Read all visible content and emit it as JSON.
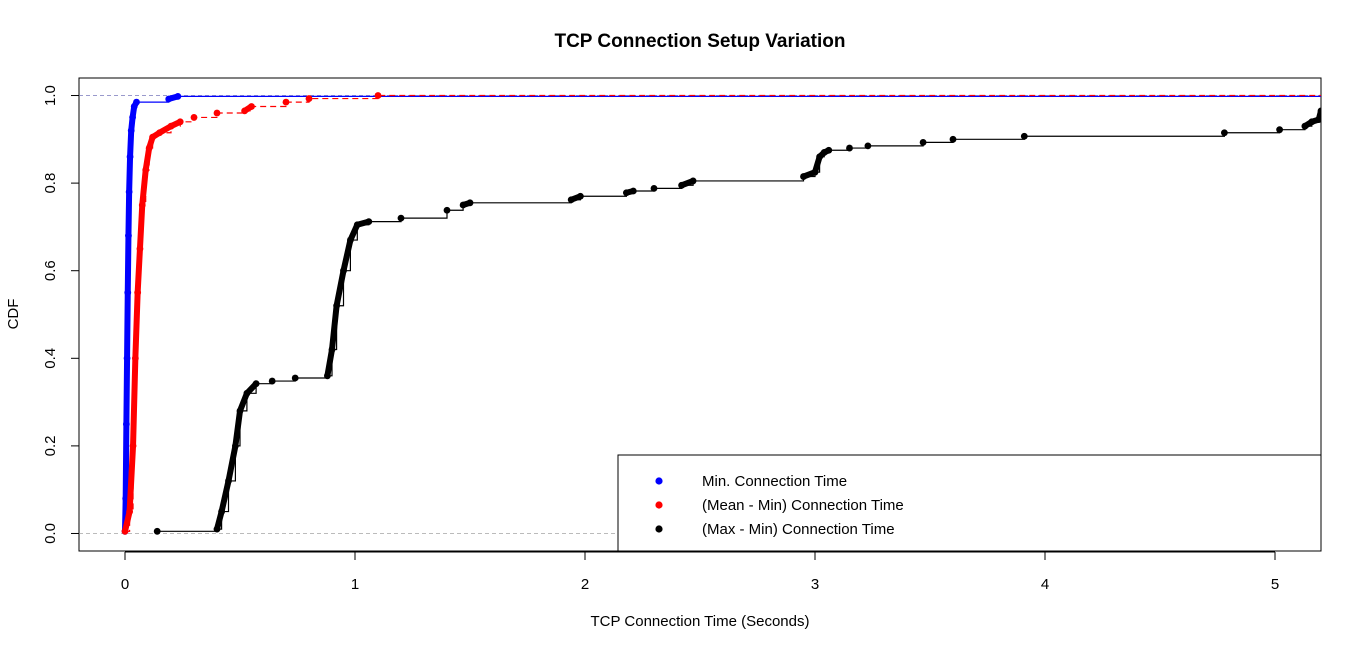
{
  "chart_data": {
    "type": "line",
    "subtype": "step-ecdf",
    "title": "TCP Connection Setup Variation",
    "xlabel": "TCP Connection Time (Seconds)",
    "ylabel": "CDF",
    "xlim": [
      -0.2,
      5.2
    ],
    "ylim": [
      -0.04,
      1.04
    ],
    "xticks": [
      0,
      1,
      2,
      3,
      4,
      5
    ],
    "xtick_labels": [
      "0",
      "1",
      "2",
      "3",
      "4",
      "5"
    ],
    "yticks": [
      0.0,
      0.2,
      0.4,
      0.6,
      0.8,
      1.0
    ],
    "ytick_labels": [
      "0.0",
      "0.2",
      "0.4",
      "0.6",
      "0.8",
      "1.0"
    ],
    "reference_lines": [
      {
        "y": 0,
        "color": "#bbbbbb",
        "style": "dashed"
      },
      {
        "y": 1,
        "color": "#9999cc",
        "style": "dashed"
      }
    ],
    "legend_position": "bottom-right",
    "series": [
      {
        "name": "Min. Connection Time",
        "color": "#0000ff",
        "dashed": false,
        "points": [
          [
            0.0,
            0.005
          ],
          [
            0.003,
            0.08
          ],
          [
            0.006,
            0.25
          ],
          [
            0.009,
            0.4
          ],
          [
            0.012,
            0.55
          ],
          [
            0.015,
            0.68
          ],
          [
            0.018,
            0.78
          ],
          [
            0.022,
            0.86
          ],
          [
            0.027,
            0.92
          ],
          [
            0.033,
            0.95
          ],
          [
            0.04,
            0.975
          ],
          [
            0.05,
            0.985
          ],
          [
            0.19,
            0.992
          ],
          [
            0.23,
            0.998
          ]
        ]
      },
      {
        "name": "(Mean - Min) Connection Time",
        "color": "#ff0000",
        "dashed": true,
        "points": [
          [
            0.0,
            0.005
          ],
          [
            0.02,
            0.05
          ],
          [
            0.035,
            0.2
          ],
          [
            0.045,
            0.4
          ],
          [
            0.055,
            0.55
          ],
          [
            0.065,
            0.65
          ],
          [
            0.075,
            0.75
          ],
          [
            0.09,
            0.83
          ],
          [
            0.105,
            0.88
          ],
          [
            0.12,
            0.905
          ],
          [
            0.15,
            0.915
          ],
          [
            0.2,
            0.93
          ],
          [
            0.24,
            0.94
          ],
          [
            0.3,
            0.95
          ],
          [
            0.4,
            0.96
          ],
          [
            0.52,
            0.965
          ],
          [
            0.55,
            0.975
          ],
          [
            0.7,
            0.985
          ],
          [
            0.8,
            0.993
          ],
          [
            1.1,
            1.0
          ]
        ]
      },
      {
        "name": "(Max - Min) Connection Time",
        "color": "#000000",
        "dashed": false,
        "points": [
          [
            0.14,
            0.005
          ],
          [
            0.4,
            0.01
          ],
          [
            0.42,
            0.05
          ],
          [
            0.45,
            0.12
          ],
          [
            0.48,
            0.2
          ],
          [
            0.5,
            0.28
          ],
          [
            0.53,
            0.32
          ],
          [
            0.57,
            0.342
          ],
          [
            0.64,
            0.348
          ],
          [
            0.74,
            0.355
          ],
          [
            0.88,
            0.36
          ],
          [
            0.9,
            0.42
          ],
          [
            0.92,
            0.52
          ],
          [
            0.95,
            0.6
          ],
          [
            0.98,
            0.67
          ],
          [
            1.01,
            0.705
          ],
          [
            1.06,
            0.712
          ],
          [
            1.2,
            0.72
          ],
          [
            1.4,
            0.738
          ],
          [
            1.47,
            0.75
          ],
          [
            1.5,
            0.755
          ],
          [
            1.94,
            0.762
          ],
          [
            1.98,
            0.77
          ],
          [
            2.18,
            0.778
          ],
          [
            2.21,
            0.782
          ],
          [
            2.3,
            0.788
          ],
          [
            2.42,
            0.795
          ],
          [
            2.47,
            0.805
          ],
          [
            2.95,
            0.815
          ],
          [
            3.0,
            0.825
          ],
          [
            3.02,
            0.86
          ],
          [
            3.04,
            0.87
          ],
          [
            3.06,
            0.875
          ],
          [
            3.15,
            0.88
          ],
          [
            3.23,
            0.885
          ],
          [
            3.47,
            0.893
          ],
          [
            3.6,
            0.9
          ],
          [
            3.91,
            0.907
          ],
          [
            4.78,
            0.915
          ],
          [
            5.02,
            0.922
          ],
          [
            5.13,
            0.93
          ],
          [
            5.16,
            0.94
          ],
          [
            5.19,
            0.945
          ],
          [
            5.2,
            0.965
          ]
        ]
      }
    ]
  }
}
